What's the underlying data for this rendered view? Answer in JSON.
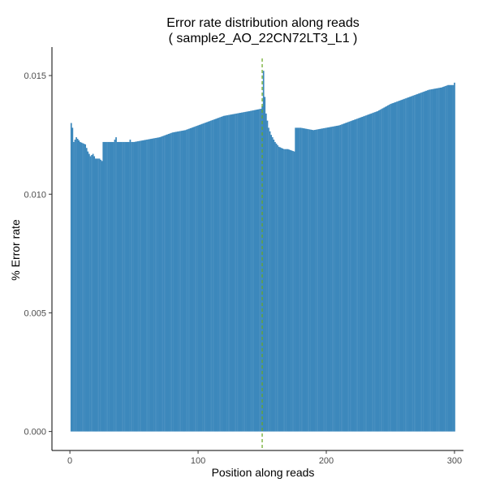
{
  "chart_data": {
    "type": "bar",
    "title": "Error rate distribution along reads",
    "subtitle": "( sample2_AO_22CN72LT3_L1 )",
    "xlabel": "Position along reads",
    "ylabel": "% Error rate",
    "xlim": [
      -14,
      307
    ],
    "ylim": [
      -0.0008,
      0.0162
    ],
    "x_ticks": [
      0,
      100,
      200,
      300
    ],
    "x_tick_labels": [
      "0",
      "100",
      "200",
      "300"
    ],
    "y_ticks": [
      0.0,
      0.005,
      0.01,
      0.015
    ],
    "y_tick_labels": [
      "0.000",
      "0.005",
      "0.010",
      "0.015"
    ],
    "grid": false,
    "bar_color": "#3C88BC",
    "read_boundary": 150,
    "read_boundary_color": "#66A61E",
    "x_start": 1,
    "profile": [
      [
        1,
        0.013
      ],
      [
        2,
        0.0128
      ],
      [
        3,
        0.0122
      ],
      [
        5,
        0.0124
      ],
      [
        8,
        0.0122
      ],
      [
        12,
        0.0121
      ],
      [
        14,
        0.0118
      ],
      [
        16,
        0.0116
      ],
      [
        18,
        0.0117
      ],
      [
        20,
        0.0115
      ],
      [
        23,
        0.0115
      ],
      [
        25,
        0.0114
      ],
      [
        26,
        0.0122
      ],
      [
        30,
        0.0122
      ],
      [
        34,
        0.0122
      ],
      [
        36,
        0.0124
      ],
      [
        37,
        0.0122
      ],
      [
        40,
        0.0122
      ],
      [
        45,
        0.0122
      ],
      [
        50,
        0.0122
      ],
      [
        60,
        0.0123
      ],
      [
        70,
        0.0124
      ],
      [
        80,
        0.0126
      ],
      [
        90,
        0.0127
      ],
      [
        100,
        0.0129
      ],
      [
        110,
        0.0131
      ],
      [
        120,
        0.0133
      ],
      [
        130,
        0.0134
      ],
      [
        140,
        0.0135
      ],
      [
        149,
        0.0136
      ],
      [
        150,
        0.0137
      ],
      [
        151,
        0.0152
      ],
      [
        152,
        0.0141
      ],
      [
        153,
        0.0134
      ],
      [
        155,
        0.0128
      ],
      [
        157,
        0.0125
      ],
      [
        160,
        0.0122
      ],
      [
        163,
        0.012
      ],
      [
        167,
        0.0119
      ],
      [
        170,
        0.0119
      ],
      [
        175,
        0.0118
      ],
      [
        176,
        0.0128
      ],
      [
        180,
        0.0128
      ],
      [
        190,
        0.0127
      ],
      [
        200,
        0.0128
      ],
      [
        210,
        0.0129
      ],
      [
        220,
        0.0131
      ],
      [
        230,
        0.0133
      ],
      [
        240,
        0.0135
      ],
      [
        250,
        0.0138
      ],
      [
        260,
        0.014
      ],
      [
        270,
        0.0142
      ],
      [
        280,
        0.0144
      ],
      [
        290,
        0.0145
      ],
      [
        295,
        0.0146
      ],
      [
        299,
        0.0146
      ],
      [
        300,
        0.0147
      ]
    ],
    "spikes": [
      [
        36,
        0.0124
      ],
      [
        43,
        0.0122
      ],
      [
        47,
        0.0123
      ]
    ]
  }
}
